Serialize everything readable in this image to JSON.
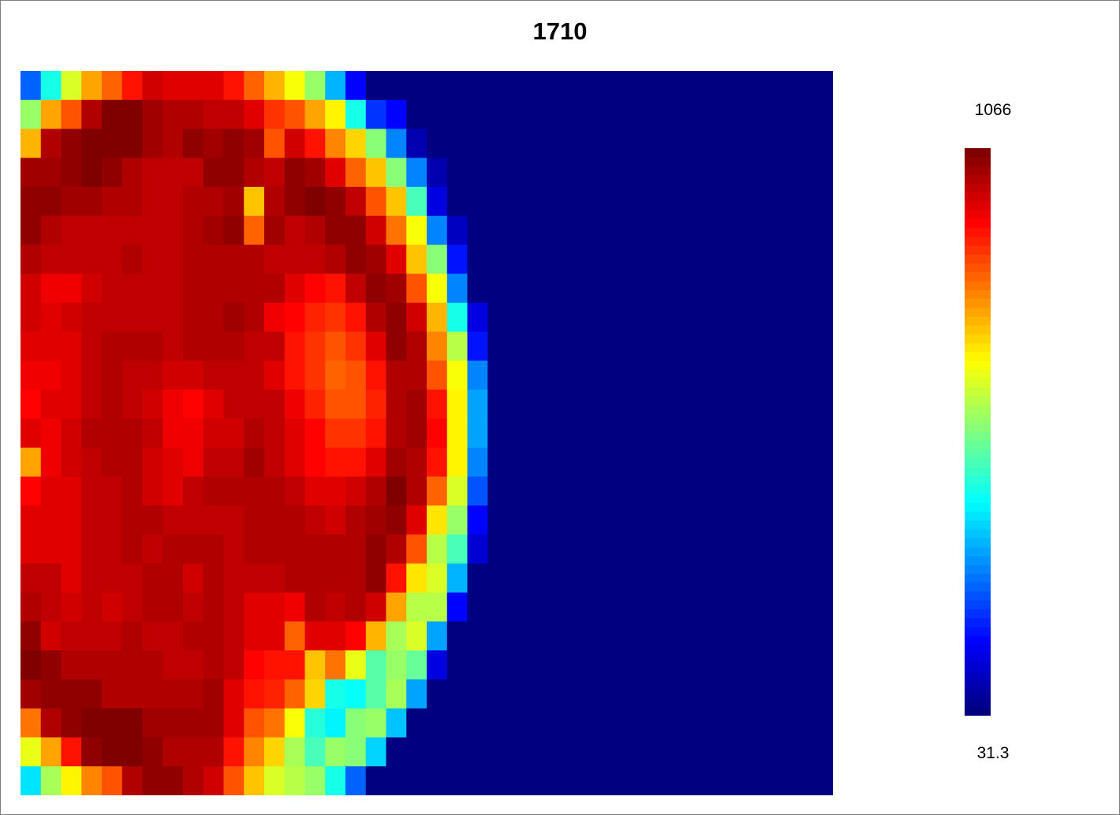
{
  "chart_data": {
    "type": "heatmap",
    "title": "1710",
    "rows": 25,
    "cols": 40,
    "colorbar": {
      "max_label": "1066",
      "min_label": "31.3",
      "min": 31.3,
      "max": 1066,
      "colormap": "jet",
      "steps": 64
    },
    "values": [
      [
        0.22,
        0.4,
        0.58,
        0.72,
        0.78,
        0.86,
        0.92,
        0.9,
        0.91,
        0.9,
        0.86,
        0.78,
        0.7,
        0.62,
        0.52,
        0.3,
        0.12,
        0.0,
        0.0,
        0.0,
        0.0,
        0.0,
        0.0,
        0.0,
        0.0,
        0.0,
        0.0,
        0.0,
        0.0,
        0.0,
        0.0,
        0.0,
        0.0,
        0.0,
        0.0,
        0.0,
        0.0,
        0.0,
        0.0,
        0.0
      ],
      [
        0.52,
        0.72,
        0.8,
        0.95,
        1.0,
        1.0,
        0.97,
        0.95,
        0.96,
        0.94,
        0.93,
        0.9,
        0.82,
        0.8,
        0.72,
        0.64,
        0.4,
        0.18,
        0.12,
        0.0,
        0.0,
        0.0,
        0.0,
        0.0,
        0.0,
        0.0,
        0.0,
        0.0,
        0.0,
        0.0,
        0.0,
        0.0,
        0.0,
        0.0,
        0.0,
        0.0,
        0.0,
        0.0,
        0.0,
        0.0
      ],
      [
        0.7,
        0.95,
        0.98,
        1.0,
        1.0,
        1.0,
        0.97,
        0.96,
        0.98,
        0.97,
        0.98,
        0.97,
        0.8,
        0.92,
        0.85,
        0.75,
        0.66,
        0.5,
        0.25,
        0.05,
        0.0,
        0.0,
        0.0,
        0.0,
        0.0,
        0.0,
        0.0,
        0.0,
        0.0,
        0.0,
        0.0,
        0.0,
        0.0,
        0.0,
        0.0,
        0.0,
        0.0,
        0.0,
        0.0,
        0.0
      ],
      [
        0.97,
        0.97,
        0.98,
        1.0,
        0.98,
        0.96,
        0.94,
        0.94,
        0.94,
        0.98,
        0.98,
        0.95,
        0.93,
        0.99,
        0.97,
        0.9,
        0.78,
        0.68,
        0.5,
        0.25,
        0.05,
        0.0,
        0.0,
        0.0,
        0.0,
        0.0,
        0.0,
        0.0,
        0.0,
        0.0,
        0.0,
        0.0,
        0.0,
        0.0,
        0.0,
        0.0,
        0.0,
        0.0,
        0.0,
        0.0
      ],
      [
        0.98,
        0.98,
        0.97,
        0.97,
        0.95,
        0.95,
        0.93,
        0.94,
        0.95,
        0.96,
        0.97,
        0.68,
        0.96,
        0.99,
        1.0,
        0.99,
        0.93,
        0.8,
        0.68,
        0.44,
        0.1,
        0.0,
        0.0,
        0.0,
        0.0,
        0.0,
        0.0,
        0.0,
        0.0,
        0.0,
        0.0,
        0.0,
        0.0,
        0.0,
        0.0,
        0.0,
        0.0,
        0.0,
        0.0,
        0.0
      ],
      [
        0.98,
        0.96,
        0.94,
        0.94,
        0.94,
        0.94,
        0.94,
        0.93,
        0.95,
        0.97,
        0.98,
        0.78,
        0.97,
        0.94,
        0.96,
        0.99,
        0.99,
        0.92,
        0.76,
        0.62,
        0.25,
        0.06,
        0.0,
        0.0,
        0.0,
        0.0,
        0.0,
        0.0,
        0.0,
        0.0,
        0.0,
        0.0,
        0.0,
        0.0,
        0.0,
        0.0,
        0.0,
        0.0,
        0.0,
        0.0
      ],
      [
        0.96,
        0.93,
        0.93,
        0.94,
        0.94,
        0.95,
        0.94,
        0.93,
        0.95,
        0.96,
        0.95,
        0.95,
        0.94,
        0.94,
        0.93,
        0.95,
        0.98,
        0.97,
        0.9,
        0.68,
        0.5,
        0.15,
        0.0,
        0.0,
        0.0,
        0.0,
        0.0,
        0.0,
        0.0,
        0.0,
        0.0,
        0.0,
        0.0,
        0.0,
        0.0,
        0.0,
        0.0,
        0.0,
        0.0,
        0.0
      ],
      [
        0.92,
        0.89,
        0.89,
        0.92,
        0.94,
        0.94,
        0.94,
        0.94,
        0.95,
        0.96,
        0.96,
        0.96,
        0.95,
        0.9,
        0.88,
        0.86,
        0.94,
        0.99,
        0.97,
        0.8,
        0.62,
        0.25,
        0.0,
        0.0,
        0.0,
        0.0,
        0.0,
        0.0,
        0.0,
        0.0,
        0.0,
        0.0,
        0.0,
        0.0,
        0.0,
        0.0,
        0.0,
        0.0,
        0.0,
        0.0
      ],
      [
        0.92,
        0.9,
        0.92,
        0.93,
        0.94,
        0.94,
        0.93,
        0.94,
        0.95,
        0.96,
        0.97,
        0.95,
        0.89,
        0.88,
        0.84,
        0.82,
        0.86,
        0.96,
        0.98,
        0.92,
        0.7,
        0.4,
        0.1,
        0.0,
        0.0,
        0.0,
        0.0,
        0.0,
        0.0,
        0.0,
        0.0,
        0.0,
        0.0,
        0.0,
        0.0,
        0.0,
        0.0,
        0.0,
        0.0,
        0.0
      ],
      [
        0.9,
        0.91,
        0.91,
        0.94,
        0.96,
        0.95,
        0.95,
        0.93,
        0.95,
        0.95,
        0.96,
        0.94,
        0.93,
        0.86,
        0.82,
        0.8,
        0.82,
        0.91,
        0.98,
        0.96,
        0.75,
        0.55,
        0.15,
        0.0,
        0.0,
        0.0,
        0.0,
        0.0,
        0.0,
        0.0,
        0.0,
        0.0,
        0.0,
        0.0,
        0.0,
        0.0,
        0.0,
        0.0,
        0.0,
        0.0
      ],
      [
        0.89,
        0.89,
        0.91,
        0.94,
        0.96,
        0.94,
        0.93,
        0.92,
        0.92,
        0.94,
        0.94,
        0.94,
        0.91,
        0.86,
        0.82,
        0.78,
        0.8,
        0.86,
        0.96,
        0.96,
        0.8,
        0.62,
        0.25,
        0.0,
        0.0,
        0.0,
        0.0,
        0.0,
        0.0,
        0.0,
        0.0,
        0.0,
        0.0,
        0.0,
        0.0,
        0.0,
        0.0,
        0.0,
        0.0,
        0.0
      ],
      [
        0.87,
        0.91,
        0.91,
        0.94,
        0.96,
        0.94,
        0.92,
        0.89,
        0.88,
        0.91,
        0.93,
        0.94,
        0.93,
        0.89,
        0.84,
        0.8,
        0.8,
        0.84,
        0.96,
        0.97,
        0.86,
        0.63,
        0.28,
        0.0,
        0.0,
        0.0,
        0.0,
        0.0,
        0.0,
        0.0,
        0.0,
        0.0,
        0.0,
        0.0,
        0.0,
        0.0,
        0.0,
        0.0,
        0.0,
        0.0
      ],
      [
        0.91,
        0.89,
        0.92,
        0.96,
        0.95,
        0.95,
        0.93,
        0.89,
        0.89,
        0.92,
        0.92,
        0.95,
        0.94,
        0.91,
        0.88,
        0.82,
        0.83,
        0.86,
        0.96,
        0.97,
        0.88,
        0.64,
        0.28,
        0.0,
        0.0,
        0.0,
        0.0,
        0.0,
        0.0,
        0.0,
        0.0,
        0.0,
        0.0,
        0.0,
        0.0,
        0.0,
        0.0,
        0.0,
        0.0,
        0.0
      ],
      [
        0.72,
        0.89,
        0.92,
        0.94,
        0.95,
        0.95,
        0.92,
        0.9,
        0.89,
        0.93,
        0.94,
        0.97,
        0.94,
        0.91,
        0.88,
        0.85,
        0.86,
        0.91,
        0.97,
        0.96,
        0.86,
        0.64,
        0.25,
        0.0,
        0.0,
        0.0,
        0.0,
        0.0,
        0.0,
        0.0,
        0.0,
        0.0,
        0.0,
        0.0,
        0.0,
        0.0,
        0.0,
        0.0,
        0.0,
        0.0
      ],
      [
        0.88,
        0.91,
        0.91,
        0.94,
        0.94,
        0.95,
        0.92,
        0.9,
        0.93,
        0.95,
        0.95,
        0.95,
        0.95,
        0.94,
        0.91,
        0.9,
        0.92,
        0.95,
        1.0,
        0.95,
        0.78,
        0.58,
        0.2,
        0.0,
        0.0,
        0.0,
        0.0,
        0.0,
        0.0,
        0.0,
        0.0,
        0.0,
        0.0,
        0.0,
        0.0,
        0.0,
        0.0,
        0.0,
        0.0,
        0.0
      ],
      [
        0.91,
        0.91,
        0.91,
        0.93,
        0.94,
        0.95,
        0.95,
        0.94,
        0.94,
        0.94,
        0.94,
        0.95,
        0.95,
        0.95,
        0.94,
        0.92,
        0.95,
        0.97,
        0.98,
        0.9,
        0.65,
        0.52,
        0.12,
        0.0,
        0.0,
        0.0,
        0.0,
        0.0,
        0.0,
        0.0,
        0.0,
        0.0,
        0.0,
        0.0,
        0.0,
        0.0,
        0.0,
        0.0,
        0.0,
        0.0
      ],
      [
        0.91,
        0.91,
        0.91,
        0.93,
        0.94,
        0.95,
        0.94,
        0.95,
        0.96,
        0.95,
        0.94,
        0.95,
        0.95,
        0.96,
        0.96,
        0.95,
        0.95,
        0.98,
        0.96,
        0.8,
        0.55,
        0.45,
        0.08,
        0.0,
        0.0,
        0.0,
        0.0,
        0.0,
        0.0,
        0.0,
        0.0,
        0.0,
        0.0,
        0.0,
        0.0,
        0.0,
        0.0,
        0.0,
        0.0,
        0.0
      ],
      [
        0.93,
        0.93,
        0.91,
        0.93,
        0.94,
        0.94,
        0.95,
        0.95,
        0.92,
        0.96,
        0.94,
        0.94,
        0.94,
        0.95,
        0.96,
        0.95,
        0.96,
        0.98,
        0.86,
        0.65,
        0.58,
        0.3,
        0.0,
        0.0,
        0.0,
        0.0,
        0.0,
        0.0,
        0.0,
        0.0,
        0.0,
        0.0,
        0.0,
        0.0,
        0.0,
        0.0,
        0.0,
        0.0,
        0.0,
        0.0
      ],
      [
        0.95,
        0.93,
        0.92,
        0.93,
        0.92,
        0.94,
        0.95,
        0.96,
        0.94,
        0.95,
        0.94,
        0.91,
        0.91,
        0.89,
        0.95,
        0.94,
        0.96,
        0.92,
        0.72,
        0.56,
        0.56,
        0.12,
        0.0,
        0.0,
        0.0,
        0.0,
        0.0,
        0.0,
        0.0,
        0.0,
        0.0,
        0.0,
        0.0,
        0.0,
        0.0,
        0.0,
        0.0,
        0.0,
        0.0,
        0.0
      ],
      [
        0.99,
        0.92,
        0.94,
        0.94,
        0.94,
        0.95,
        0.94,
        0.94,
        0.95,
        0.95,
        0.94,
        0.9,
        0.9,
        0.78,
        0.91,
        0.91,
        0.87,
        0.7,
        0.54,
        0.58,
        0.28,
        0.0,
        0.0,
        0.0,
        0.0,
        0.0,
        0.0,
        0.0,
        0.0,
        0.0,
        0.0,
        0.0,
        0.0,
        0.0,
        0.0,
        0.0,
        0.0,
        0.0,
        0.0,
        0.0
      ],
      [
        1.0,
        0.98,
        0.96,
        0.95,
        0.95,
        0.96,
        0.96,
        0.94,
        0.93,
        0.95,
        0.93,
        0.88,
        0.86,
        0.86,
        0.68,
        0.76,
        0.6,
        0.46,
        0.52,
        0.48,
        0.1,
        0.0,
        0.0,
        0.0,
        0.0,
        0.0,
        0.0,
        0.0,
        0.0,
        0.0,
        0.0,
        0.0,
        0.0,
        0.0,
        0.0,
        0.0,
        0.0,
        0.0,
        0.0,
        0.0
      ],
      [
        0.97,
        0.98,
        0.99,
        0.98,
        0.96,
        0.95,
        0.96,
        0.96,
        0.96,
        0.97,
        0.91,
        0.86,
        0.84,
        0.78,
        0.66,
        0.4,
        0.38,
        0.46,
        0.54,
        0.28,
        0.0,
        0.0,
        0.0,
        0.0,
        0.0,
        0.0,
        0.0,
        0.0,
        0.0,
        0.0,
        0.0,
        0.0,
        0.0,
        0.0,
        0.0,
        0.0,
        0.0,
        0.0,
        0.0,
        0.0
      ],
      [
        0.76,
        0.96,
        0.98,
        1.0,
        1.0,
        1.0,
        0.97,
        0.97,
        0.97,
        0.97,
        0.91,
        0.8,
        0.76,
        0.62,
        0.42,
        0.36,
        0.5,
        0.52,
        0.32,
        0.0,
        0.0,
        0.0,
        0.0,
        0.0,
        0.0,
        0.0,
        0.0,
        0.0,
        0.0,
        0.0,
        0.0,
        0.0,
        0.0,
        0.0,
        0.0,
        0.0,
        0.0,
        0.0,
        0.0,
        0.0
      ],
      [
        0.6,
        0.72,
        0.86,
        0.98,
        1.0,
        1.0,
        0.99,
        0.96,
        0.96,
        0.96,
        0.86,
        0.74,
        0.66,
        0.54,
        0.44,
        0.52,
        0.5,
        0.34,
        0.0,
        0.0,
        0.0,
        0.0,
        0.0,
        0.0,
        0.0,
        0.0,
        0.0,
        0.0,
        0.0,
        0.0,
        0.0,
        0.0,
        0.0,
        0.0,
        0.0,
        0.0,
        0.0,
        0.0,
        0.0,
        0.0
      ],
      [
        0.35,
        0.54,
        0.64,
        0.74,
        0.8,
        0.96,
        0.99,
        0.99,
        0.96,
        0.92,
        0.8,
        0.68,
        0.58,
        0.56,
        0.52,
        0.4,
        0.22,
        0.0,
        0.0,
        0.0,
        0.0,
        0.0,
        0.0,
        0.0,
        0.0,
        0.0,
        0.0,
        0.0,
        0.0,
        0.0,
        0.0,
        0.0,
        0.0,
        0.0,
        0.0,
        0.0,
        0.0,
        0.0,
        0.0,
        0.0
      ]
    ]
  }
}
